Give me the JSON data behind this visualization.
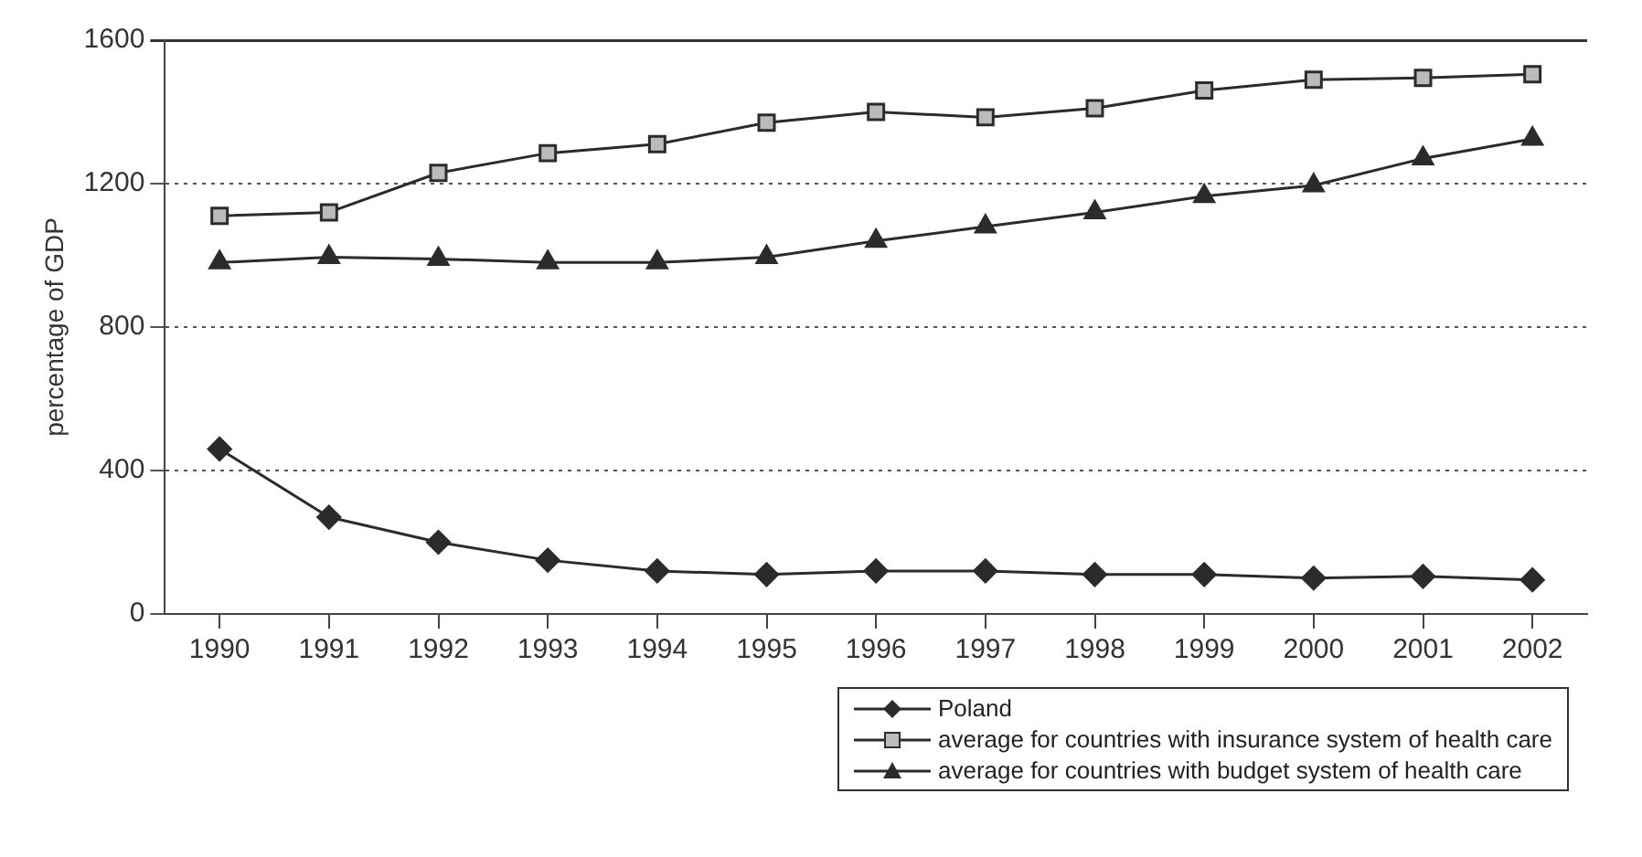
{
  "chart_data": {
    "type": "line",
    "ylabel": "percentage of GDP",
    "categories": [
      "1990",
      "1991",
      "1992",
      "1993",
      "1994",
      "1995",
      "1996",
      "1997",
      "1998",
      "1999",
      "2000",
      "2001",
      "2002"
    ],
    "series": [
      {
        "name": "Poland",
        "color": "#2b2b2b",
        "marker": "diamond",
        "values": [
          460,
          270,
          200,
          150,
          120,
          110,
          120,
          120,
          110,
          110,
          100,
          105,
          95
        ]
      },
      {
        "name": "average for countries with insurance system of health care",
        "color": "#2b2b2b",
        "marker": "square",
        "values": [
          1110,
          1120,
          1230,
          1285,
          1310,
          1370,
          1400,
          1385,
          1410,
          1460,
          1490,
          1495,
          1505
        ]
      },
      {
        "name": "average for countries with budget system of health care",
        "color": "#2b2b2b",
        "marker": "triangle",
        "values": [
          980,
          995,
          990,
          980,
          980,
          995,
          1040,
          1080,
          1120,
          1165,
          1195,
          1270,
          1325
        ]
      }
    ],
    "ylim": [
      0,
      1600
    ],
    "yticks": [
      0,
      400,
      800,
      1200,
      1600
    ],
    "grid": "y",
    "line_style": "solid",
    "legend": "bottom right"
  }
}
